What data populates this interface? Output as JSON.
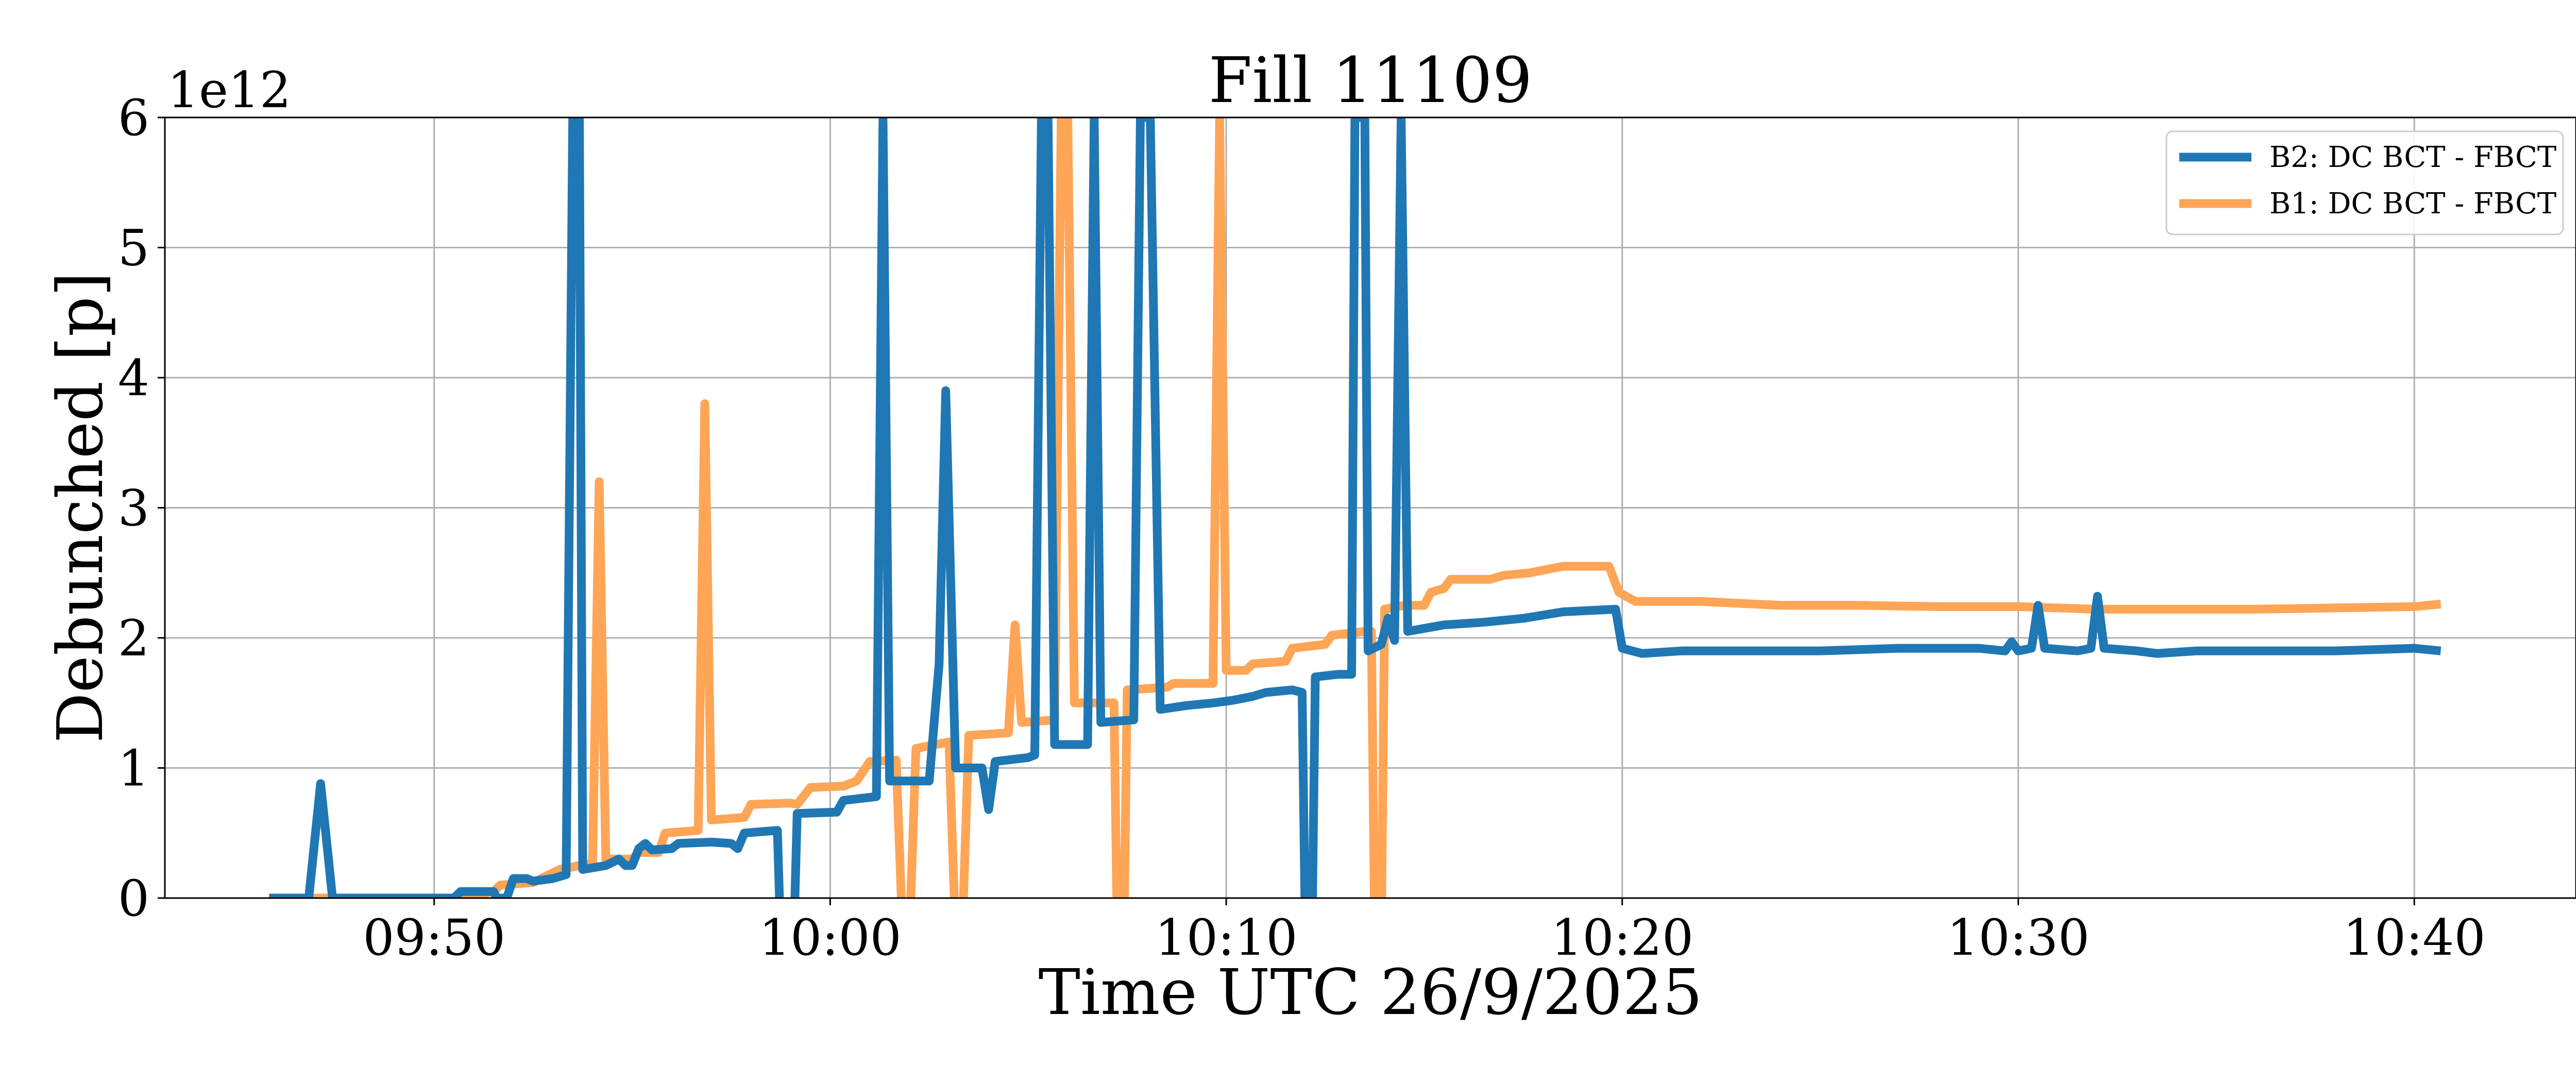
{
  "chart_data": {
    "type": "line",
    "title": "Fill 11109",
    "xlabel": "Time UTC 26/9/2025",
    "ylabel": "Debunched [p]",
    "y_offset_text": "1e12",
    "y_scale": 1000000000000.0,
    "xlim": [
      "09:43:12",
      "10:44:05"
    ],
    "ylim": [
      0,
      6
    ],
    "x_ticks": [
      "09:50",
      "10:00",
      "10:10",
      "10:20",
      "10:30",
      "10:40"
    ],
    "y_ticks": [
      0,
      1,
      2,
      3,
      4,
      5,
      6
    ],
    "grid": true,
    "legend_position": "top-right",
    "series": [
      {
        "name": "B2: DC BCT - FBCT",
        "color": "#1f77b4",
        "points": [
          [
            "09:45:50",
            0
          ],
          [
            "09:46:50",
            0
          ],
          [
            "09:47:08",
            0.88
          ],
          [
            "09:47:26",
            0
          ],
          [
            "09:50:30",
            0
          ],
          [
            "09:50:40",
            0.05
          ],
          [
            "09:51:30",
            0.05
          ],
          [
            "09:51:35",
            0
          ],
          [
            "09:51:50",
            0
          ],
          [
            "09:52:00",
            0.15
          ],
          [
            "09:52:20",
            0.15
          ],
          [
            "09:52:30",
            0.13
          ],
          [
            "09:53:00",
            0.15
          ],
          [
            "09:53:20",
            0.18
          ],
          [
            "09:53:30",
            6.0
          ],
          [
            "09:53:40",
            6.0
          ],
          [
            "09:53:45",
            0.22
          ],
          [
            "09:54:20",
            0.25
          ],
          [
            "09:54:40",
            0.3
          ],
          [
            "09:54:50",
            0.25
          ],
          [
            "09:55:00",
            0.25
          ],
          [
            "09:55:10",
            0.38
          ],
          [
            "09:55:20",
            0.42
          ],
          [
            "09:55:30",
            0.37
          ],
          [
            "09:56:00",
            0.38
          ],
          [
            "09:56:10",
            0.42
          ],
          [
            "09:57:00",
            0.43
          ],
          [
            "09:57:30",
            0.42
          ],
          [
            "09:57:40",
            0.38
          ],
          [
            "09:57:50",
            0.5
          ],
          [
            "09:58:40",
            0.52
          ],
          [
            "09:58:45",
            -0.3
          ],
          [
            "09:59:05",
            -0.3
          ],
          [
            "09:59:10",
            0.65
          ],
          [
            "10:00:10",
            0.66
          ],
          [
            "10:00:20",
            0.75
          ],
          [
            "10:01:10",
            0.78
          ],
          [
            "10:01:20",
            6.0
          ],
          [
            "10:01:30",
            0.9
          ],
          [
            "10:02:30",
            0.9
          ],
          [
            "10:02:45",
            1.8
          ],
          [
            "10:02:55",
            3.9
          ],
          [
            "10:03:10",
            1.0
          ],
          [
            "10:03:50",
            1.0
          ],
          [
            "10:04:00",
            0.68
          ],
          [
            "10:04:10",
            1.05
          ],
          [
            "10:05:00",
            1.08
          ],
          [
            "10:05:10",
            1.1
          ],
          [
            "10:05:20",
            6.0
          ],
          [
            "10:05:30",
            6.0
          ],
          [
            "10:05:40",
            1.18
          ],
          [
            "10:06:30",
            1.18
          ],
          [
            "10:06:40",
            6.0
          ],
          [
            "10:06:50",
            1.35
          ],
          [
            "10:07:40",
            1.37
          ],
          [
            "10:07:50",
            6.0
          ],
          [
            "10:08:05",
            6.0
          ],
          [
            "10:08:20",
            1.45
          ],
          [
            "10:09:00",
            1.48
          ],
          [
            "10:09:40",
            1.5
          ],
          [
            "10:10:10",
            1.52
          ],
          [
            "10:10:40",
            1.55
          ],
          [
            "10:11:00",
            1.58
          ],
          [
            "10:11:40",
            1.6
          ],
          [
            "10:11:55",
            1.58
          ],
          [
            "10:12:00",
            -0.3
          ],
          [
            "10:12:10",
            -0.3
          ],
          [
            "10:12:15",
            1.7
          ],
          [
            "10:12:50",
            1.72
          ],
          [
            "10:13:10",
            1.72
          ],
          [
            "10:13:15",
            6.0
          ],
          [
            "10:13:30",
            6.0
          ],
          [
            "10:13:35",
            1.9
          ],
          [
            "10:13:55",
            1.95
          ],
          [
            "10:14:05",
            2.15
          ],
          [
            "10:14:15",
            1.98
          ],
          [
            "10:14:25",
            6.0
          ],
          [
            "10:14:35",
            2.05
          ],
          [
            "10:15:30",
            2.1
          ],
          [
            "10:16:30",
            2.12
          ],
          [
            "10:17:30",
            2.15
          ],
          [
            "10:18:30",
            2.2
          ],
          [
            "10:19:50",
            2.22
          ],
          [
            "10:20:00",
            1.92
          ],
          [
            "10:20:30",
            1.88
          ],
          [
            "10:21:30",
            1.9
          ],
          [
            "10:23:00",
            1.9
          ],
          [
            "10:25:00",
            1.9
          ],
          [
            "10:27:00",
            1.92
          ],
          [
            "10:29:00",
            1.92
          ],
          [
            "10:29:40",
            1.9
          ],
          [
            "10:29:50",
            1.97
          ],
          [
            "10:30:00",
            1.9
          ],
          [
            "10:30:20",
            1.92
          ],
          [
            "10:30:30",
            2.25
          ],
          [
            "10:30:40",
            1.92
          ],
          [
            "10:31:30",
            1.9
          ],
          [
            "10:31:50",
            1.92
          ],
          [
            "10:32:00",
            2.32
          ],
          [
            "10:32:10",
            1.92
          ],
          [
            "10:33:00",
            1.9
          ],
          [
            "10:33:30",
            1.88
          ],
          [
            "10:34:30",
            1.9
          ],
          [
            "10:36:00",
            1.9
          ],
          [
            "10:38:00",
            1.9
          ],
          [
            "10:40:00",
            1.92
          ],
          [
            "10:40:40",
            1.9
          ]
        ]
      },
      {
        "name": "B1: DC BCT - FBCT",
        "color": "#ffa556",
        "points": [
          [
            "09:45:50",
            0
          ],
          [
            "09:50:40",
            0
          ],
          [
            "09:51:30",
            0.05
          ],
          [
            "09:51:40",
            0.1
          ],
          [
            "09:52:30",
            0.12
          ],
          [
            "09:53:10",
            0.22
          ],
          [
            "09:53:40",
            0.25
          ],
          [
            "09:54:00",
            0.27
          ],
          [
            "09:54:10",
            3.2
          ],
          [
            "09:54:20",
            0.3
          ],
          [
            "09:55:00",
            0.3
          ],
          [
            "09:55:10",
            0.35
          ],
          [
            "09:55:40",
            0.35
          ],
          [
            "09:55:50",
            0.5
          ],
          [
            "09:56:40",
            0.52
          ],
          [
            "09:56:50",
            3.8
          ],
          [
            "09:57:00",
            0.6
          ],
          [
            "09:57:50",
            0.62
          ],
          [
            "09:58:00",
            0.72
          ],
          [
            "09:59:00",
            0.73
          ],
          [
            "09:59:10",
            0.72
          ],
          [
            "09:59:30",
            0.85
          ],
          [
            "10:00:20",
            0.86
          ],
          [
            "10:00:40",
            0.9
          ],
          [
            "10:01:00",
            1.05
          ],
          [
            "10:01:40",
            1.06
          ],
          [
            "10:01:50",
            -0.3
          ],
          [
            "10:02:00",
            -0.3
          ],
          [
            "10:02:10",
            1.15
          ],
          [
            "10:02:40",
            1.18
          ],
          [
            "10:03:00",
            1.2
          ],
          [
            "10:03:10",
            -0.3
          ],
          [
            "10:03:20",
            -0.3
          ],
          [
            "10:03:30",
            1.25
          ],
          [
            "10:04:30",
            1.27
          ],
          [
            "10:04:40",
            2.1
          ],
          [
            "10:04:50",
            1.35
          ],
          [
            "10:05:40",
            1.37
          ],
          [
            "10:05:50",
            6.0
          ],
          [
            "10:06:00",
            6.0
          ],
          [
            "10:06:10",
            1.5
          ],
          [
            "10:06:50",
            1.5
          ],
          [
            "10:07:10",
            1.5
          ],
          [
            "10:07:15",
            -0.3
          ],
          [
            "10:07:25",
            -0.3
          ],
          [
            "10:07:30",
            1.6
          ],
          [
            "10:08:30",
            1.62
          ],
          [
            "10:08:40",
            1.65
          ],
          [
            "10:09:40",
            1.65
          ],
          [
            "10:09:50",
            6.0
          ],
          [
            "10:10:00",
            1.75
          ],
          [
            "10:10:30",
            1.75
          ],
          [
            "10:10:40",
            1.8
          ],
          [
            "10:11:30",
            1.82
          ],
          [
            "10:11:40",
            1.92
          ],
          [
            "10:12:30",
            1.95
          ],
          [
            "10:12:40",
            2.02
          ],
          [
            "10:13:30",
            2.05
          ],
          [
            "10:13:40",
            2.05
          ],
          [
            "10:13:45",
            -0.3
          ],
          [
            "10:13:55",
            -0.3
          ],
          [
            "10:14:00",
            2.22
          ],
          [
            "10:14:30",
            2.25
          ],
          [
            "10:15:00",
            2.25
          ],
          [
            "10:15:10",
            2.35
          ],
          [
            "10:15:30",
            2.38
          ],
          [
            "10:15:40",
            2.45
          ],
          [
            "10:16:40",
            2.45
          ],
          [
            "10:17:00",
            2.48
          ],
          [
            "10:17:40",
            2.5
          ],
          [
            "10:18:00",
            2.52
          ],
          [
            "10:18:30",
            2.55
          ],
          [
            "10:19:40",
            2.55
          ],
          [
            "10:19:55",
            2.35
          ],
          [
            "10:20:20",
            2.28
          ],
          [
            "10:22:00",
            2.28
          ],
          [
            "10:24:00",
            2.25
          ],
          [
            "10:26:00",
            2.25
          ],
          [
            "10:28:00",
            2.24
          ],
          [
            "10:30:00",
            2.24
          ],
          [
            "10:32:00",
            2.22
          ],
          [
            "10:34:00",
            2.22
          ],
          [
            "10:36:00",
            2.22
          ],
          [
            "10:38:00",
            2.23
          ],
          [
            "10:40:00",
            2.24
          ],
          [
            "10:40:40",
            2.26
          ]
        ]
      }
    ]
  }
}
